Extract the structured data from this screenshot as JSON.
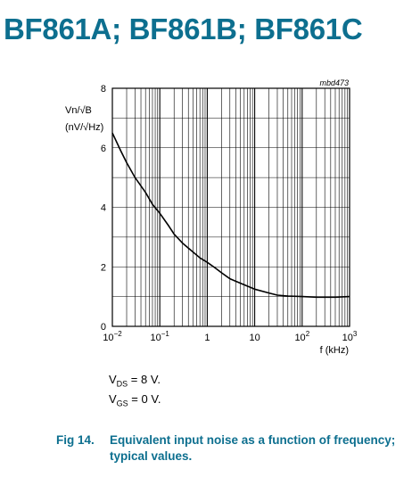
{
  "heading": "BF861A; BF861B; BF861C",
  "colors": {
    "heading": "#0d6f8f",
    "grid": "#000000",
    "curve": "#000000"
  },
  "chart_data": {
    "type": "line",
    "tag": "mbd473",
    "ylabel_line1": "Vn/√B",
    "ylabel_line2": "(nV/√Hz)",
    "xlabel": "f (kHz)",
    "xscale": "log",
    "xlim": [
      0.01,
      1000
    ],
    "ylim": [
      0,
      8
    ],
    "grid": true,
    "x_ticks": [
      {
        "v": 0.01,
        "base": "10",
        "exp": "−2"
      },
      {
        "v": 0.1,
        "base": "10",
        "exp": "−1"
      },
      {
        "v": 1,
        "base": "1",
        "exp": ""
      },
      {
        "v": 10,
        "base": "10",
        "exp": ""
      },
      {
        "v": 100,
        "base": "10",
        "exp": "2"
      },
      {
        "v": 1000,
        "base": "10",
        "exp": "3"
      }
    ],
    "y_ticks": [
      {
        "v": 0,
        "label": "0"
      },
      {
        "v": 2,
        "label": "2"
      },
      {
        "v": 4,
        "label": "4"
      },
      {
        "v": 6,
        "label": "6"
      },
      {
        "v": 8,
        "label": "8"
      }
    ],
    "series": [
      {
        "x": [
          0.01,
          0.015,
          0.02,
          0.03,
          0.05,
          0.07,
          0.1,
          0.15,
          0.2,
          0.3,
          0.5,
          0.7,
          1,
          1.5,
          2,
          3,
          5,
          7,
          10,
          20,
          30,
          50,
          100,
          200,
          500,
          1000
        ],
        "y": [
          6.5,
          5.9,
          5.5,
          5.0,
          4.5,
          4.1,
          3.8,
          3.4,
          3.1,
          2.8,
          2.5,
          2.3,
          2.15,
          1.95,
          1.8,
          1.6,
          1.45,
          1.35,
          1.25,
          1.12,
          1.05,
          1.02,
          1.0,
          0.98,
          0.98,
          1.0
        ]
      }
    ]
  },
  "conditions": [
    {
      "sym": "V",
      "sub": "DS",
      "rest": " = 8 V."
    },
    {
      "sym": "V",
      "sub": "GS",
      "rest": " = 0 V."
    }
  ],
  "caption": {
    "fig": "Fig 14.",
    "text": "Equivalent input noise as a function of frequency; typical values."
  }
}
